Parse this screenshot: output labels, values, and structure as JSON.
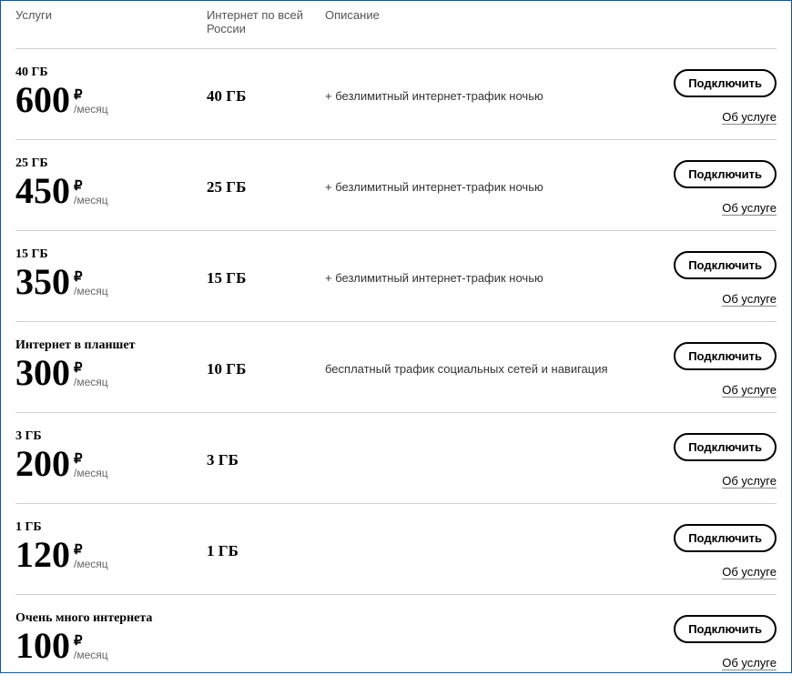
{
  "header": {
    "service": "Услуги",
    "internet": "Интернет по всей России",
    "desc": "Описание"
  },
  "common": {
    "ruble": "₽",
    "per_month": "/месяц",
    "connect": "Подключить",
    "about": "Об услуге"
  },
  "plans": [
    {
      "name": "40 ГБ",
      "price": "600",
      "gb": "40 ГБ",
      "desc": "+ безлимитный интернет-трафик ночью"
    },
    {
      "name": "25 ГБ",
      "price": "450",
      "gb": "25 ГБ",
      "desc": "+ безлимитный интернет-трафик ночью"
    },
    {
      "name": "15 ГБ",
      "price": "350",
      "gb": "15 ГБ",
      "desc": "+ безлимитный интернет-трафик ночью"
    },
    {
      "name": "Интернет в планшет",
      "price": "300",
      "gb": "10 ГБ",
      "desc": "бесплатный трафик социальных сетей и навигация"
    },
    {
      "name": "3 ГБ",
      "price": "200",
      "gb": "3 ГБ",
      "desc": ""
    },
    {
      "name": "1 ГБ",
      "price": "120",
      "gb": "1 ГБ",
      "desc": ""
    },
    {
      "name": "Очень много интернета",
      "price": "100",
      "gb": "",
      "desc": ""
    }
  ],
  "styles": {
    "border_color": "#1a5490",
    "divider_color": "#d0d0d0",
    "text_color": "#000000",
    "muted_color": "#666666",
    "price_fontsize": 40,
    "name_fontsize": 14,
    "gb_fontsize": 17,
    "desc_fontsize": 13,
    "btn_border_radius": 18
  }
}
